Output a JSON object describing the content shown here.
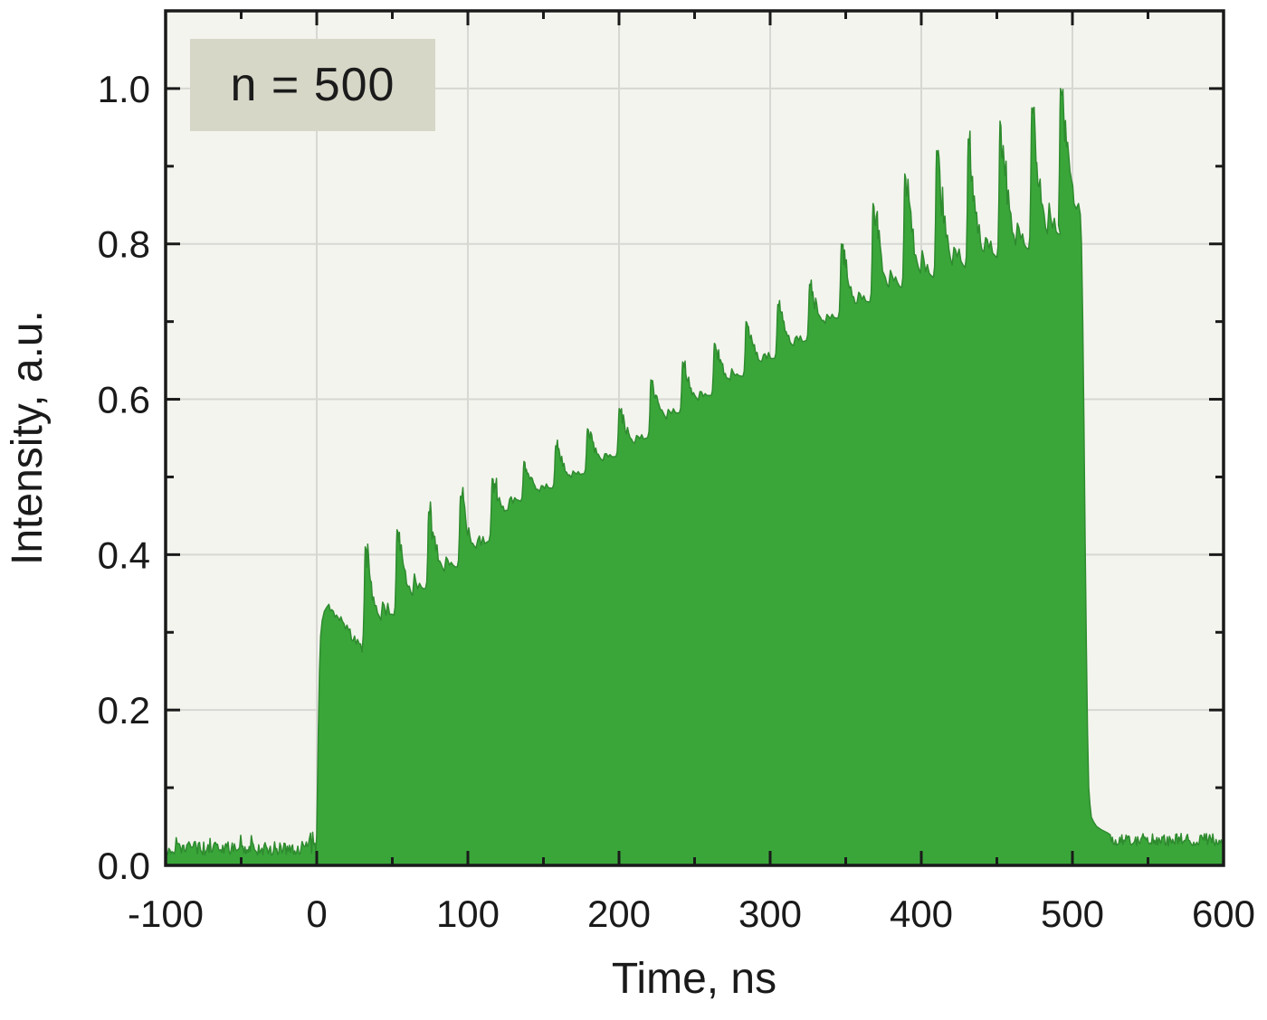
{
  "chart_data": {
    "type": "area",
    "title": "",
    "xlabel": "Time, ns",
    "ylabel": "Intensity, a.u.",
    "annotation": "n = 500",
    "xlim": [
      -100,
      600
    ],
    "ylim": [
      0,
      1.1
    ],
    "x_major_ticks": [
      -100,
      0,
      100,
      200,
      300,
      400,
      500,
      600
    ],
    "x_tick_labels": [
      "-100",
      "0",
      "100",
      "200",
      "300",
      "400",
      "500",
      "600"
    ],
    "x_minor_step": 50,
    "y_major_ticks": [
      0,
      0.2,
      0.4,
      0.6,
      0.8,
      1.0
    ],
    "y_tick_labels": [
      "0.0",
      "0.2",
      "0.4",
      "0.6",
      "0.8",
      "1.0"
    ],
    "y_minor_step": 0.1,
    "grid": true,
    "legend": false,
    "colors": {
      "fill": "#3aa63a",
      "fill_edge": "#2e8b2e",
      "plot_bg": "#f4f4ee",
      "grid": "#d7d7d3",
      "axis": "#1a1a1a",
      "annotation_bg": "#d7d7c8",
      "text": "#1a1a1a"
    },
    "baseline_pre": 0.022,
    "baseline_post": 0.033,
    "noise_amplitude": 0.018,
    "pulse": {
      "start_ns": 0,
      "end_ns": 511,
      "spike_period_ns": 21,
      "leading_edge": [
        [
          0,
          0.04
        ],
        [
          0.5,
          0.1
        ],
        [
          1,
          0.17
        ],
        [
          1.8,
          0.25
        ],
        [
          2.6,
          0.295
        ],
        [
          3.6,
          0.315
        ],
        [
          5,
          0.327
        ],
        [
          6.5,
          0.332
        ],
        [
          8,
          0.336
        ]
      ],
      "initial_sag": [
        [
          8,
          0.336
        ],
        [
          30,
          0.278
        ]
      ],
      "spike_peaks": [
        [
          32,
          0.41
        ],
        [
          53,
          0.432
        ],
        [
          74,
          0.455
        ],
        [
          95,
          0.475
        ],
        [
          116,
          0.498
        ],
        [
          137,
          0.52
        ],
        [
          158,
          0.54
        ],
        [
          179,
          0.562
        ],
        [
          200,
          0.588
        ],
        [
          221,
          0.625
        ],
        [
          242,
          0.648
        ],
        [
          263,
          0.672
        ],
        [
          284,
          0.7
        ],
        [
          305,
          0.722
        ],
        [
          326,
          0.748
        ],
        [
          347,
          0.8
        ],
        [
          368,
          0.852
        ],
        [
          389,
          0.89
        ],
        [
          410,
          0.92
        ],
        [
          431,
          0.935
        ],
        [
          452,
          0.958
        ],
        [
          473,
          0.975
        ],
        [
          492,
          1.0
        ]
      ],
      "dip_envelope": [
        [
          0,
          0.29
        ],
        [
          27,
          0.278
        ],
        [
          48,
          0.315
        ],
        [
          69,
          0.35
        ],
        [
          90,
          0.378
        ],
        [
          111,
          0.408
        ],
        [
          132,
          0.465
        ],
        [
          153,
          0.482
        ],
        [
          174,
          0.5
        ],
        [
          195,
          0.522
        ],
        [
          216,
          0.545
        ],
        [
          237,
          0.578
        ],
        [
          258,
          0.6
        ],
        [
          279,
          0.625
        ],
        [
          300,
          0.648
        ],
        [
          321,
          0.67
        ],
        [
          342,
          0.7
        ],
        [
          363,
          0.72
        ],
        [
          384,
          0.74
        ],
        [
          405,
          0.752
        ],
        [
          426,
          0.765
        ],
        [
          447,
          0.777
        ],
        [
          468,
          0.788
        ],
        [
          489,
          0.8
        ],
        [
          505,
          0.845
        ]
      ],
      "fall": [
        [
          501,
          0.852
        ],
        [
          502.5,
          0.845
        ],
        [
          504,
          0.852
        ],
        [
          505.2,
          0.838
        ],
        [
          506,
          0.8
        ],
        [
          506.8,
          0.7
        ],
        [
          507.6,
          0.57
        ],
        [
          508.4,
          0.42
        ],
        [
          509.2,
          0.28
        ],
        [
          510,
          0.17
        ],
        [
          510.8,
          0.1
        ],
        [
          511.6,
          0.078
        ],
        [
          512.5,
          0.062
        ],
        [
          514,
          0.056
        ],
        [
          516,
          0.05
        ],
        [
          519,
          0.046
        ],
        [
          523,
          0.042
        ]
      ]
    }
  }
}
